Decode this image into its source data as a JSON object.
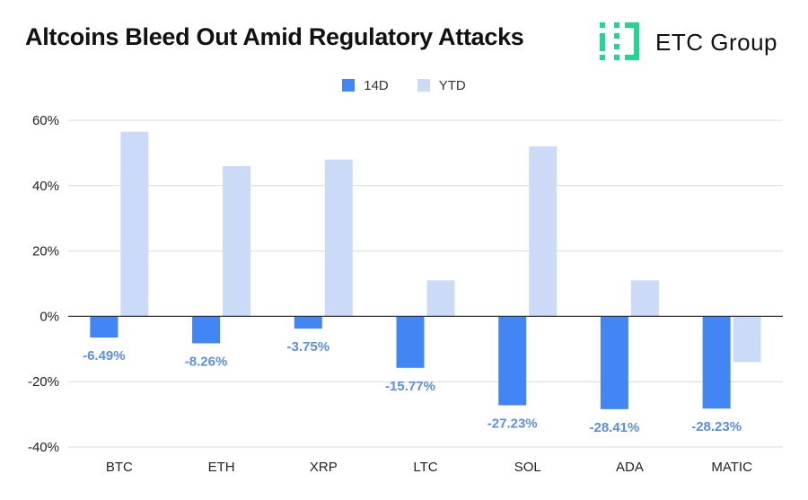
{
  "chart_data": {
    "type": "bar",
    "title": "Altcoins Bleed Out Amid Regulatory Attacks",
    "categories": [
      "BTC",
      "ETH",
      "XRP",
      "LTC",
      "SOL",
      "ADA",
      "MATIC"
    ],
    "series": [
      {
        "name": "14D",
        "values": [
          -6.49,
          -8.26,
          -3.75,
          -15.77,
          -27.23,
          -28.41,
          -28.23
        ],
        "labels": [
          "-6.49%",
          "-8.26%",
          "-3.75%",
          "-15.77%",
          "-27.23%",
          "-28.41%",
          "-28.23%"
        ],
        "color": "#4285f4"
      },
      {
        "name": "YTD",
        "values": [
          56.5,
          46,
          48,
          11,
          52,
          11,
          -14
        ],
        "color": "#cbdbf7"
      }
    ],
    "yticks": [
      60,
      40,
      20,
      0,
      -20,
      -40
    ],
    "ytick_labels": [
      "60%",
      "40%",
      "20%",
      "0%",
      "-20%",
      "-40%"
    ],
    "ylim": [
      -40,
      60
    ],
    "xlabel": "",
    "ylabel": "",
    "legend_position": "top",
    "grid": true,
    "label_color": "#5b8ee6"
  },
  "logo": {
    "text": "ETC Group",
    "color": "#1fd693"
  }
}
